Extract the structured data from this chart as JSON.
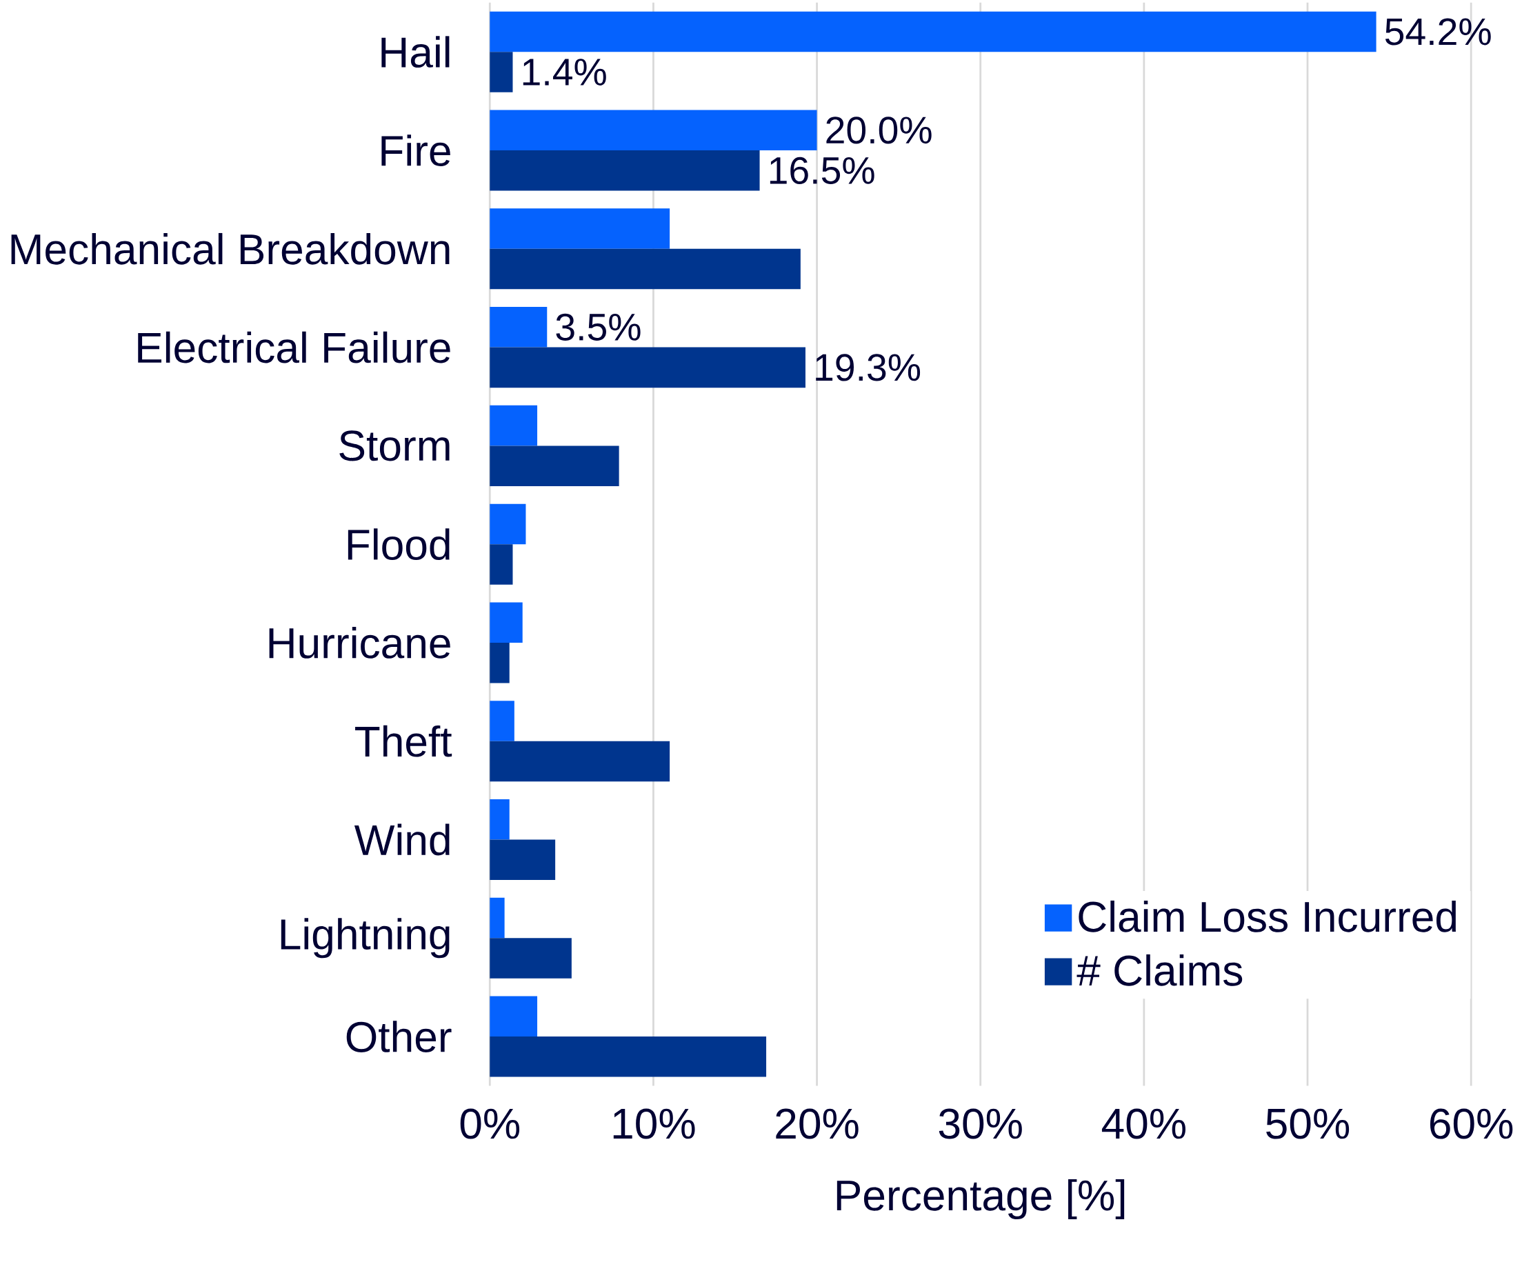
{
  "chart_data": {
    "type": "bar",
    "orientation": "horizontal",
    "xlabel": "Percentage [%]",
    "categories": [
      "Hail",
      "Fire",
      "Mechanical Breakdown",
      "Electrical Failure",
      "Storm",
      "Flood",
      "Hurricane",
      "Theft",
      "Wind",
      "Lightning",
      "Other"
    ],
    "series": [
      {
        "name": "Claim Loss Incurred",
        "color": "#0562fe",
        "values": [
          54.2,
          20.0,
          11.0,
          3.5,
          2.9,
          2.2,
          2.0,
          1.5,
          1.2,
          0.9,
          2.9
        ],
        "value_labels": [
          "54.2%",
          "20.0%",
          null,
          "3.5%",
          null,
          null,
          null,
          null,
          null,
          null,
          null
        ]
      },
      {
        "name": "# Claims",
        "color": "#00358e",
        "values": [
          1.4,
          16.5,
          19.0,
          19.3,
          7.9,
          1.4,
          1.2,
          11.0,
          4.0,
          5.0,
          16.9
        ],
        "value_labels": [
          "1.4%",
          "16.5%",
          null,
          "19.3%",
          null,
          null,
          null,
          null,
          null,
          null,
          null
        ]
      }
    ],
    "xlim": [
      0,
      60
    ],
    "xticks": [
      {
        "value": 0,
        "label": "0%"
      },
      {
        "value": 10,
        "label": "10%"
      },
      {
        "value": 20,
        "label": "20%"
      },
      {
        "value": 30,
        "label": "30%"
      },
      {
        "value": 40,
        "label": "40%"
      },
      {
        "value": 50,
        "label": "50%"
      },
      {
        "value": 60,
        "label": "60%"
      }
    ],
    "grid": "x",
    "legend": "bottom right"
  }
}
